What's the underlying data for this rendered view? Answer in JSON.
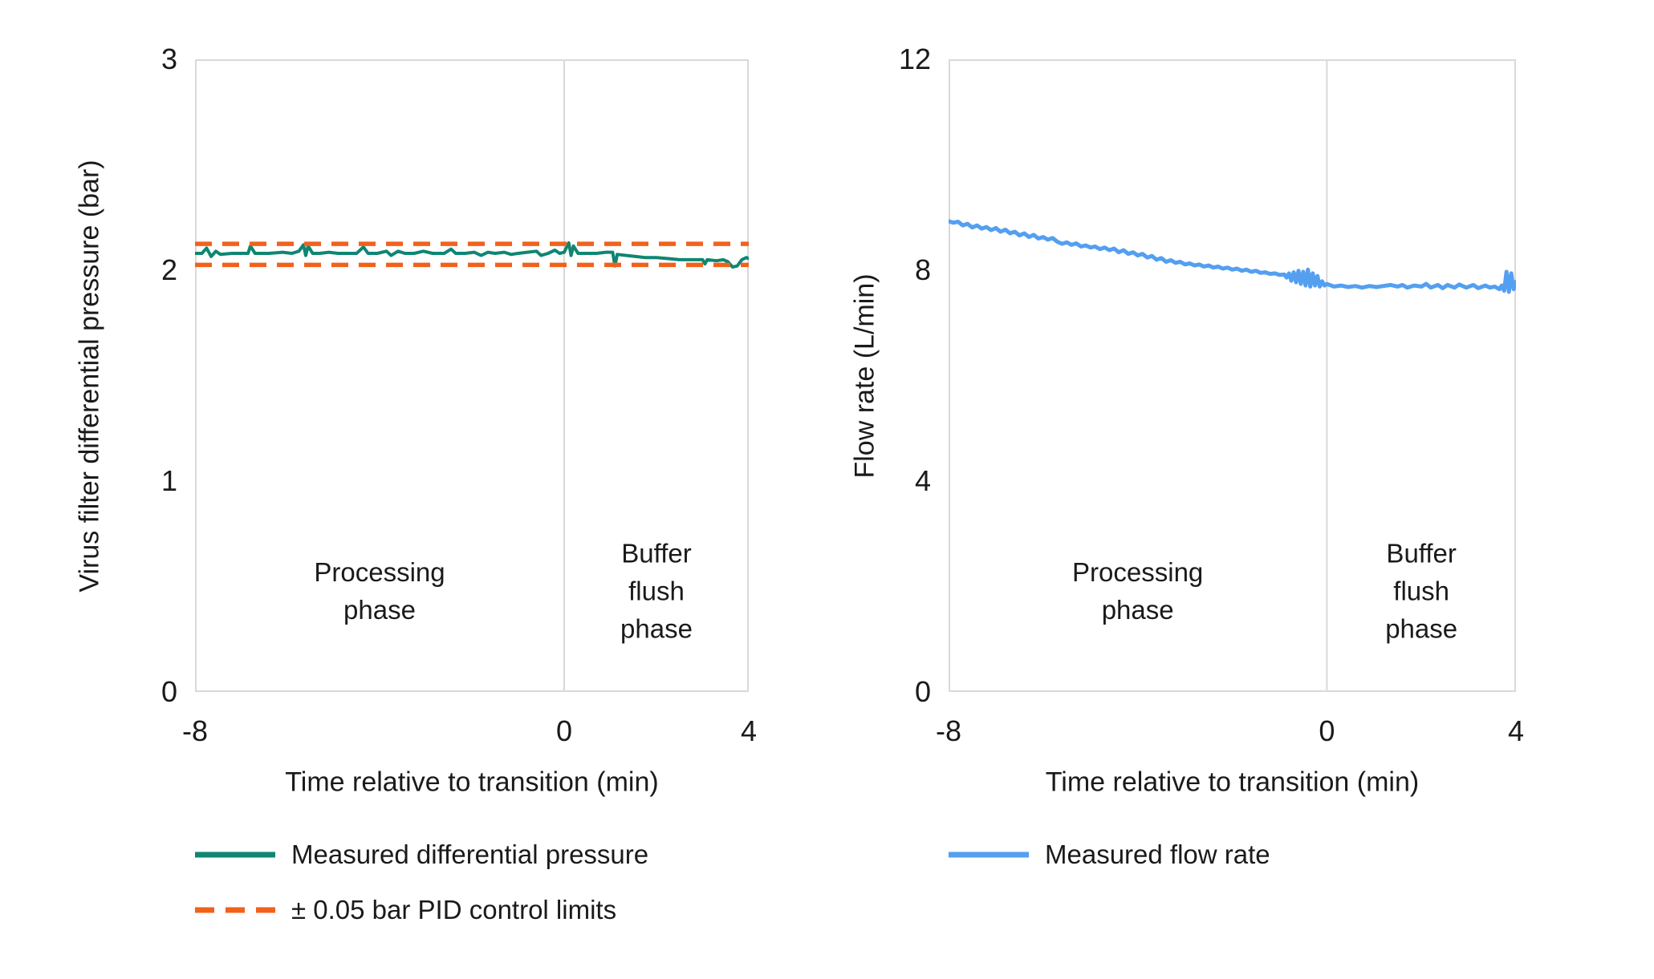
{
  "figure": {
    "background": "#FFFFFF",
    "text_color": "#1A1A1A",
    "frame_color": "#D9D9D9"
  },
  "chart_data": [
    {
      "type": "line",
      "title": "",
      "xlabel": "Time relative to transition (min)",
      "ylabel": "Virus filter differential pressure (bar)",
      "xlim": [
        -8,
        4
      ],
      "ylim": [
        0,
        3
      ],
      "xticks": [
        "-8",
        "0",
        "4"
      ],
      "xtick_values": [
        -8,
        0,
        4
      ],
      "yticks": [
        "0",
        "1",
        "2",
        "3"
      ],
      "ytick_values": [
        0,
        1,
        2,
        3
      ],
      "grid": "off",
      "vline_x": 0,
      "legend_position": "bottom-left",
      "annotations": [
        {
          "text": [
            "Processing",
            "phase"
          ],
          "x": -4,
          "y_frac": 0.84
        },
        {
          "text": [
            "Buffer",
            "flush",
            "phase"
          ],
          "x": 2,
          "y_frac": 0.84
        }
      ],
      "series": [
        {
          "name": "Measured differential pressure",
          "color": "#0E8672",
          "width": 4,
          "dash": null,
          "points": [
            [
              -8,
              2.08
            ],
            [
              -7.85,
              2.08
            ],
            [
              -7.75,
              2.105
            ],
            [
              -7.65,
              2.065
            ],
            [
              -7.55,
              2.09
            ],
            [
              -7.45,
              2.075
            ],
            [
              -7.2,
              2.08
            ],
            [
              -7,
              2.08
            ],
            [
              -6.85,
              2.08
            ],
            [
              -6.8,
              2.115
            ],
            [
              -6.7,
              2.08
            ],
            [
              -6.4,
              2.08
            ],
            [
              -6.1,
              2.085
            ],
            [
              -5.9,
              2.08
            ],
            [
              -5.75,
              2.09
            ],
            [
              -5.65,
              2.12
            ],
            [
              -5.6,
              2.07
            ],
            [
              -5.55,
              2.115
            ],
            [
              -5.45,
              2.08
            ],
            [
              -5.3,
              2.08
            ],
            [
              -5.1,
              2.085
            ],
            [
              -4.9,
              2.08
            ],
            [
              -4.7,
              2.08
            ],
            [
              -4.5,
              2.08
            ],
            [
              -4.35,
              2.11
            ],
            [
              -4.25,
              2.08
            ],
            [
              -4.05,
              2.08
            ],
            [
              -3.85,
              2.09
            ],
            [
              -3.75,
              2.07
            ],
            [
              -3.6,
              2.09
            ],
            [
              -3.45,
              2.08
            ],
            [
              -3.25,
              2.08
            ],
            [
              -3.05,
              2.09
            ],
            [
              -2.85,
              2.08
            ],
            [
              -2.6,
              2.08
            ],
            [
              -2.45,
              2.1
            ],
            [
              -2.35,
              2.08
            ],
            [
              -2.15,
              2.08
            ],
            [
              -1.95,
              2.085
            ],
            [
              -1.8,
              2.07
            ],
            [
              -1.65,
              2.085
            ],
            [
              -1.5,
              2.08
            ],
            [
              -1.3,
              2.085
            ],
            [
              -1.15,
              2.075
            ],
            [
              -1,
              2.08
            ],
            [
              -0.8,
              2.085
            ],
            [
              -0.6,
              2.09
            ],
            [
              -0.5,
              2.07
            ],
            [
              -0.35,
              2.08
            ],
            [
              -0.2,
              2.095
            ],
            [
              -0.1,
              2.08
            ],
            [
              0,
              2.085
            ],
            [
              0.1,
              2.13
            ],
            [
              0.15,
              2.07
            ],
            [
              0.2,
              2.115
            ],
            [
              0.3,
              2.08
            ],
            [
              0.5,
              2.08
            ],
            [
              0.7,
              2.08
            ],
            [
              0.9,
              2.085
            ],
            [
              1.05,
              2.085
            ],
            [
              1.1,
              2.02
            ],
            [
              1.15,
              2.075
            ],
            [
              1.35,
              2.07
            ],
            [
              1.55,
              2.065
            ],
            [
              1.75,
              2.06
            ],
            [
              2,
              2.06
            ],
            [
              2.25,
              2.055
            ],
            [
              2.5,
              2.05
            ],
            [
              2.75,
              2.05
            ],
            [
              3,
              2.05
            ],
            [
              3.05,
              2.03
            ],
            [
              3.1,
              2.05
            ],
            [
              3.3,
              2.045
            ],
            [
              3.45,
              2.05
            ],
            [
              3.55,
              2.04
            ],
            [
              3.65,
              2.015
            ],
            [
              3.75,
              2.02
            ],
            [
              3.85,
              2.05
            ],
            [
              3.95,
              2.06
            ],
            [
              4,
              2.055
            ]
          ]
        },
        {
          "name": "± 0.05 bar PID control limits",
          "color": "#F2611C",
          "width": 5.5,
          "dash": [
            21,
            13
          ],
          "hlines": [
            2.125,
            2.025
          ]
        }
      ]
    },
    {
      "type": "line",
      "title": "",
      "xlabel": "Time relative to transition (min)",
      "ylabel": "Flow rate (L/min)",
      "xlim": [
        -8,
        4
      ],
      "ylim": [
        0,
        12
      ],
      "xticks": [
        "-8",
        "0",
        "4"
      ],
      "xtick_values": [
        -8,
        0,
        4
      ],
      "yticks": [
        "0",
        "4",
        "8",
        "12"
      ],
      "ytick_values": [
        0,
        4,
        8,
        12
      ],
      "grid": "off",
      "vline_x": 0,
      "legend_position": "bottom-left",
      "annotations": [
        {
          "text": [
            "Processing",
            "phase"
          ],
          "x": -4,
          "y_frac": 0.84
        },
        {
          "text": [
            "Buffer",
            "flush",
            "phase"
          ],
          "x": 2,
          "y_frac": 0.84
        }
      ],
      "series": [
        {
          "name": "Measured flow rate",
          "color": "#549FF0",
          "width": 5,
          "dash": null,
          "points": [
            [
              -8,
              8.93
            ],
            [
              -7.9,
              8.9
            ],
            [
              -7.8,
              8.92
            ],
            [
              -7.7,
              8.85
            ],
            [
              -7.6,
              8.88
            ],
            [
              -7.5,
              8.81
            ],
            [
              -7.4,
              8.85
            ],
            [
              -7.3,
              8.79
            ],
            [
              -7.2,
              8.82
            ],
            [
              -7.1,
              8.76
            ],
            [
              -7,
              8.8
            ],
            [
              -6.9,
              8.73
            ],
            [
              -6.8,
              8.77
            ],
            [
              -6.7,
              8.7
            ],
            [
              -6.6,
              8.73
            ],
            [
              -6.5,
              8.66
            ],
            [
              -6.4,
              8.7
            ],
            [
              -6.3,
              8.63
            ],
            [
              -6.2,
              8.67
            ],
            [
              -6.1,
              8.6
            ],
            [
              -6,
              8.63
            ],
            [
              -5.9,
              8.58
            ],
            [
              -5.8,
              8.61
            ],
            [
              -5.7,
              8.54
            ],
            [
              -5.6,
              8.5
            ],
            [
              -5.5,
              8.53
            ],
            [
              -5.4,
              8.48
            ],
            [
              -5.3,
              8.51
            ],
            [
              -5.2,
              8.45
            ],
            [
              -5.1,
              8.47
            ],
            [
              -5,
              8.43
            ],
            [
              -4.9,
              8.45
            ],
            [
              -4.8,
              8.4
            ],
            [
              -4.7,
              8.43
            ],
            [
              -4.6,
              8.38
            ],
            [
              -4.5,
              8.41
            ],
            [
              -4.4,
              8.34
            ],
            [
              -4.3,
              8.38
            ],
            [
              -4.2,
              8.31
            ],
            [
              -4.1,
              8.34
            ],
            [
              -4,
              8.28
            ],
            [
              -3.9,
              8.31
            ],
            [
              -3.8,
              8.24
            ],
            [
              -3.7,
              8.27
            ],
            [
              -3.6,
              8.2
            ],
            [
              -3.5,
              8.23
            ],
            [
              -3.4,
              8.16
            ],
            [
              -3.3,
              8.19
            ],
            [
              -3.2,
              8.14
            ],
            [
              -3.1,
              8.16
            ],
            [
              -3,
              8.11
            ],
            [
              -2.9,
              8.13
            ],
            [
              -2.8,
              8.09
            ],
            [
              -2.7,
              8.11
            ],
            [
              -2.6,
              8.07
            ],
            [
              -2.5,
              8.09
            ],
            [
              -2.4,
              8.05
            ],
            [
              -2.3,
              8.07
            ],
            [
              -2.2,
              8.03
            ],
            [
              -2.1,
              8.05
            ],
            [
              -2,
              8.01
            ],
            [
              -1.9,
              8.03
            ],
            [
              -1.8,
              7.99
            ],
            [
              -1.7,
              8.01
            ],
            [
              -1.6,
              7.97
            ],
            [
              -1.5,
              7.99
            ],
            [
              -1.4,
              7.95
            ],
            [
              -1.3,
              7.96
            ],
            [
              -1.2,
              7.93
            ],
            [
              -1.1,
              7.94
            ],
            [
              -1,
              7.91
            ],
            [
              -0.9,
              7.92
            ],
            [
              -0.85,
              7.86
            ],
            [
              -0.8,
              7.94
            ],
            [
              -0.75,
              7.8
            ],
            [
              -0.7,
              7.96
            ],
            [
              -0.65,
              7.77
            ],
            [
              -0.6,
              7.99
            ],
            [
              -0.55,
              7.74
            ],
            [
              -0.5,
              7.97
            ],
            [
              -0.45,
              7.71
            ],
            [
              -0.4,
              8.01
            ],
            [
              -0.35,
              7.69
            ],
            [
              -0.3,
              7.94
            ],
            [
              -0.25,
              7.71
            ],
            [
              -0.2,
              7.89
            ],
            [
              -0.15,
              7.69
            ],
            [
              -0.1,
              7.79
            ],
            [
              -0.05,
              7.71
            ],
            [
              0,
              7.74
            ],
            [
              0.15,
              7.69
            ],
            [
              0.3,
              7.71
            ],
            [
              0.45,
              7.68
            ],
            [
              0.6,
              7.7
            ],
            [
              0.75,
              7.67
            ],
            [
              0.9,
              7.7
            ],
            [
              1.05,
              7.68
            ],
            [
              1.2,
              7.7
            ],
            [
              1.35,
              7.72
            ],
            [
              1.5,
              7.69
            ],
            [
              1.6,
              7.72
            ],
            [
              1.7,
              7.67
            ],
            [
              1.85,
              7.71
            ],
            [
              2,
              7.69
            ],
            [
              2.1,
              7.74
            ],
            [
              2.2,
              7.67
            ],
            [
              2.35,
              7.72
            ],
            [
              2.45,
              7.66
            ],
            [
              2.55,
              7.72
            ],
            [
              2.7,
              7.67
            ],
            [
              2.8,
              7.73
            ],
            [
              2.95,
              7.67
            ],
            [
              3.1,
              7.72
            ],
            [
              3.2,
              7.66
            ],
            [
              3.35,
              7.71
            ],
            [
              3.45,
              7.67
            ],
            [
              3.55,
              7.69
            ],
            [
              3.65,
              7.64
            ],
            [
              3.7,
              7.71
            ],
            [
              3.75,
              7.61
            ],
            [
              3.8,
              7.97
            ],
            [
              3.85,
              7.59
            ],
            [
              3.9,
              7.94
            ],
            [
              3.95,
              7.64
            ],
            [
              4,
              7.78
            ]
          ]
        }
      ]
    }
  ]
}
